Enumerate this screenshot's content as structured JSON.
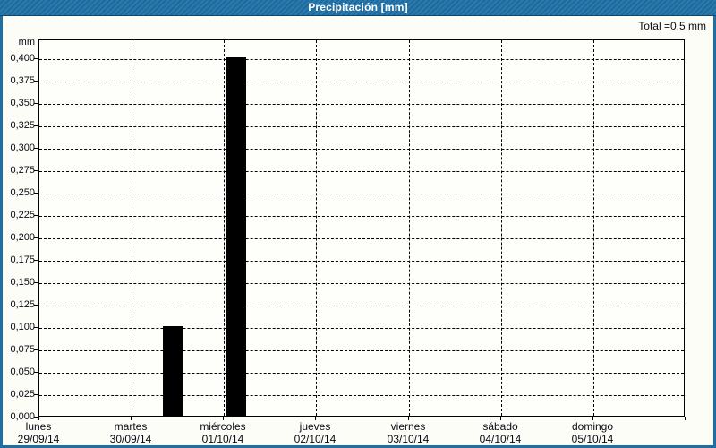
{
  "window": {
    "title": "Precipitación [mm]",
    "title_bg_color": "#1D6FA5",
    "title_text_color": "#FFFFFF",
    "border_color": "#1D6FA5"
  },
  "summary": {
    "total_label": "Total =0,5 mm"
  },
  "chart_data": {
    "type": "bar",
    "title": "Precipitación [mm]",
    "ylabel": "mm",
    "grid": "dashed",
    "bar_color": "#000000",
    "total_mm": 0.5,
    "y_axis": {
      "unit": "mm",
      "min": 0.0,
      "max": 0.4,
      "step": 0.025,
      "tick_labels": [
        "0,400",
        "0,375",
        "0,350",
        "0,325",
        "0,300",
        "0,275",
        "0,250",
        "0,225",
        "0,200",
        "0,175",
        "0,150",
        "0,125",
        "0,100",
        "0,075",
        "0,050",
        "0,025",
        "0,000"
      ]
    },
    "x_axis": {
      "span_days": 7,
      "categories": [
        {
          "name": "lunes",
          "date": "29/09/14"
        },
        {
          "name": "martes",
          "date": "30/09/14"
        },
        {
          "name": "miércoles",
          "date": "01/10/14"
        },
        {
          "name": "jueves",
          "date": "02/10/14"
        },
        {
          "name": "viernes",
          "date": "03/10/14"
        },
        {
          "name": "sábado",
          "date": "04/10/14"
        },
        {
          "name": "domingo",
          "date": "05/10/14"
        }
      ]
    },
    "bars": [
      {
        "day_start": 1.35,
        "day_end": 1.56,
        "value": 0.1
      },
      {
        "day_start": 2.04,
        "day_end": 2.25,
        "value": 0.4
      }
    ]
  }
}
